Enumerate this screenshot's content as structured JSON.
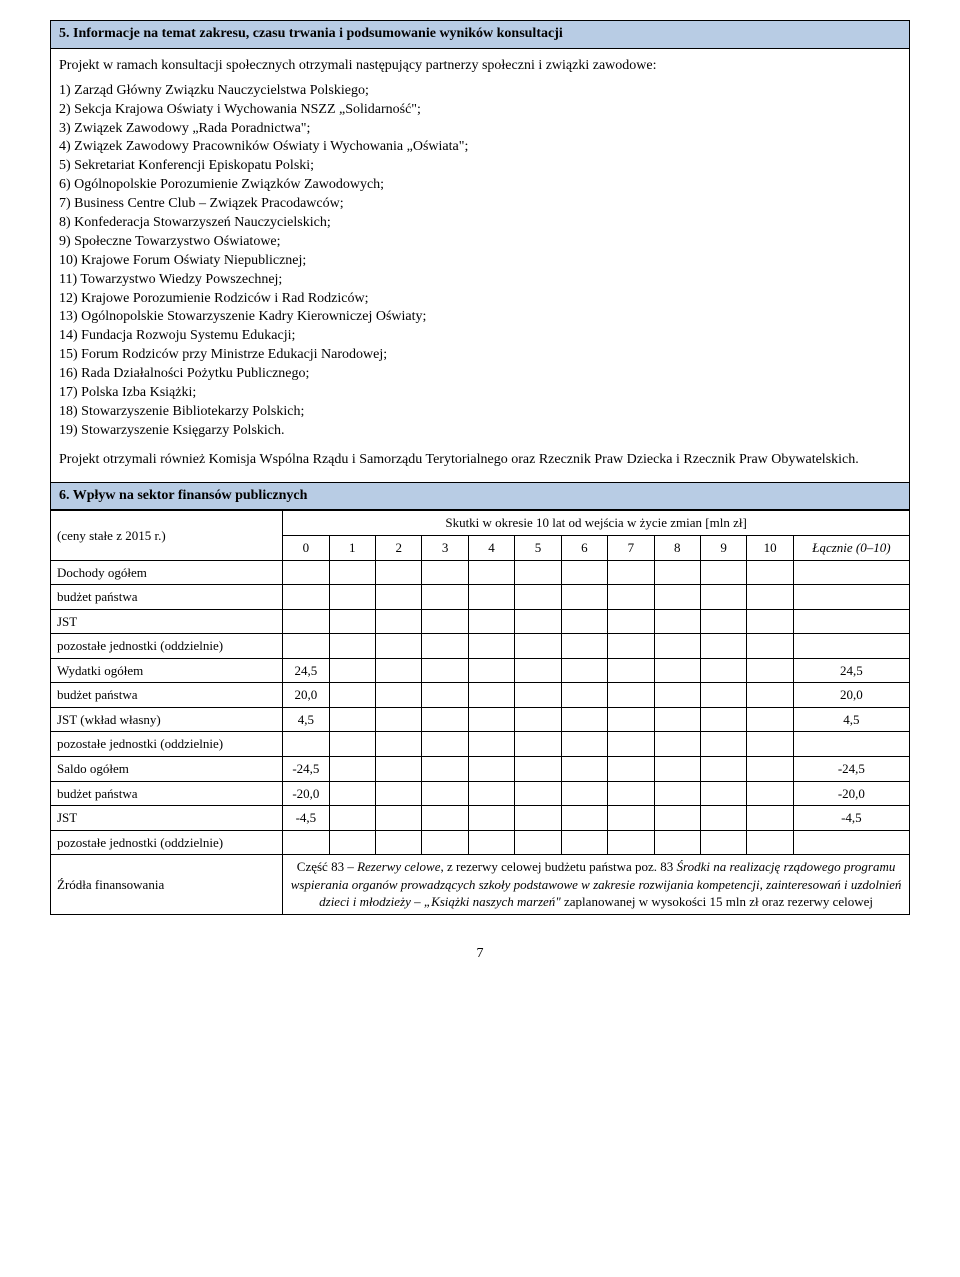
{
  "section5": {
    "title": "5.   Informacje na temat zakresu, czasu trwania i podsumowanie wyników konsultacji",
    "intro": "Projekt w ramach konsultacji społecznych otrzymali następujący partnerzy społeczni i związki zawodowe:",
    "items": [
      "1)  Zarząd Główny Związku Nauczycielstwa Polskiego;",
      "2)  Sekcja Krajowa Oświaty i Wychowania NSZZ „Solidarność\";",
      "3)  Związek Zawodowy „Rada Poradnictwa\";",
      "4)  Związek Zawodowy Pracowników Oświaty i Wychowania „Oświata\";",
      "5)  Sekretariat Konferencji Episkopatu Polski;",
      "6)  Ogólnopolskie Porozumienie Związków Zawodowych;",
      "7)  Business Centre Club – Związek Pracodawców;",
      "8)  Konfederacja Stowarzyszeń Nauczycielskich;",
      "9)  Społeczne Towarzystwo Oświatowe;",
      "10) Krajowe Forum Oświaty Niepublicznej;",
      "11) Towarzystwo Wiedzy Powszechnej;",
      "12) Krajowe Porozumienie Rodziców i Rad Rodziców;",
      "13) Ogólnopolskie Stowarzyszenie Kadry Kierowniczej Oświaty;",
      "14) Fundacja Rozwoju Systemu Edukacji;",
      "15) Forum Rodziców przy Ministrze Edukacji Narodowej;",
      "16) Rada Działalności Pożytku Publicznego;",
      "17) Polska Izba Książki;",
      "18) Stowarzyszenie Bibliotekarzy Polskich;",
      "19) Stowarzyszenie Księgarzy Polskich."
    ],
    "outro": "Projekt otrzymali również Komisja Wspólna Rządu i Samorządu Terytorialnego oraz Rzecznik Praw Dziecka i Rzecznik Praw Obywatelskich."
  },
  "section6": {
    "title": "6.   Wpływ na sektor finansów publicznych",
    "prices_label": "(ceny stałe z 2015 r.)",
    "effects_label": "Skutki w okresie 10 lat od wejścia w życie zmian [mln zł]",
    "year_headers": [
      "0",
      "1",
      "2",
      "3",
      "4",
      "5",
      "6",
      "7",
      "8",
      "9",
      "10"
    ],
    "total_header": "Łącznie (0–10)",
    "rows": [
      {
        "label": "Dochody ogółem",
        "v0": "",
        "vt": ""
      },
      {
        "label": "budżet państwa",
        "v0": "",
        "vt": ""
      },
      {
        "label": "JST",
        "v0": "",
        "vt": ""
      },
      {
        "label": "pozostałe jednostki (oddzielnie)",
        "v0": "",
        "vt": ""
      },
      {
        "label": "Wydatki ogółem",
        "v0": "24,5",
        "vt": "24,5"
      },
      {
        "label": "budżet państwa",
        "v0": "20,0",
        "vt": "20,0"
      },
      {
        "label": "JST (wkład własny)",
        "v0": "4,5",
        "vt": "4,5"
      },
      {
        "label": "pozostałe jednostki (oddzielnie)",
        "v0": "",
        "vt": ""
      },
      {
        "label": "Saldo ogółem",
        "v0": "-24,5",
        "vt": "-24,5"
      },
      {
        "label": "budżet państwa",
        "v0": "-20,0",
        "vt": "-20,0"
      },
      {
        "label": "JST",
        "v0": "-4,5",
        "vt": "-4,5"
      },
      {
        "label": "pozostałe jednostki (oddzielnie)",
        "v0": "",
        "vt": ""
      }
    ],
    "sources_label": "Źródła finansowania",
    "sources_text_plain": "Część 83 – Rezerwy celowe, z rezerwy celowej budżetu państwa poz. 83 Środki na realizację rządowego programu wspierania organów prowadzących szkoły podstawowe w zakresie rozwijania kompetencji, zainteresowań i uzdolnień dzieci i młodzieży – „Książki naszych marzeń\" zaplanowanej w wysokości 15 mln zł oraz rezerwy celowej"
  },
  "page_number": "7",
  "colors": {
    "header_bg": "#b8cce4",
    "border": "#000000",
    "text": "#000000",
    "background": "#ffffff"
  }
}
